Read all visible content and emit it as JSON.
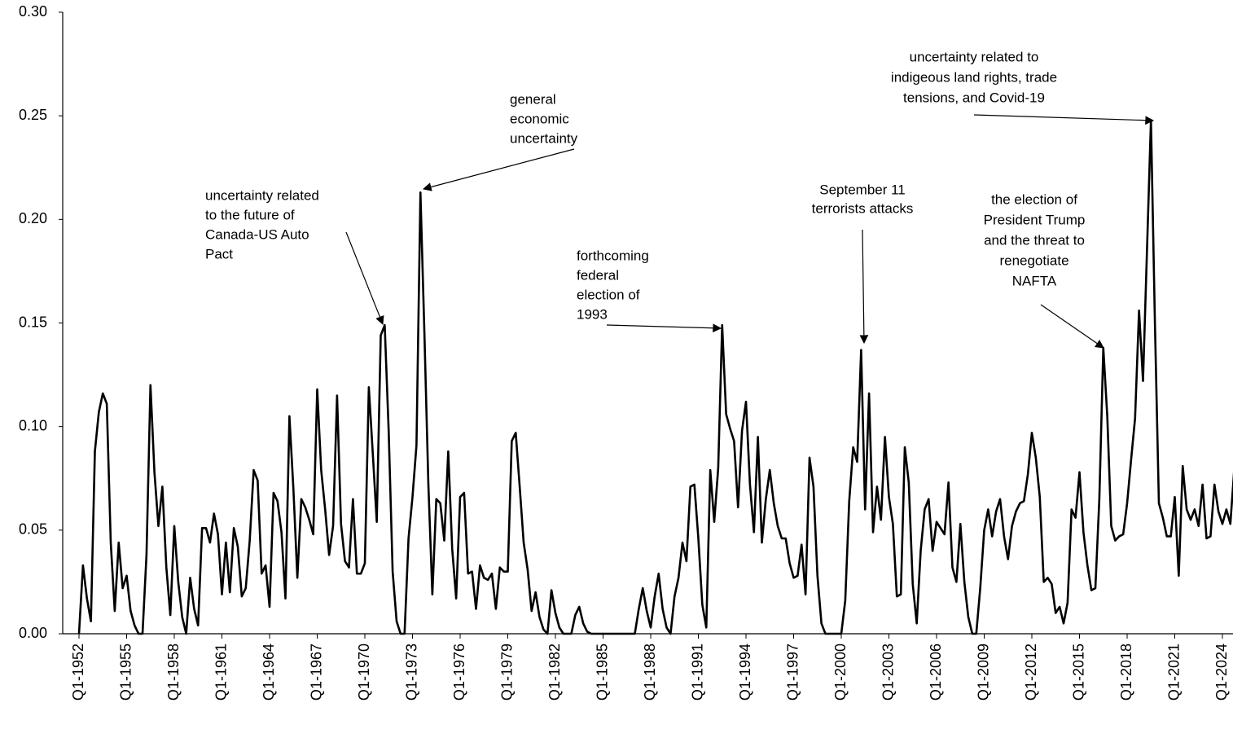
{
  "chart_data": {
    "type": "line",
    "categories": [
      "Q1-1952",
      null,
      null,
      null,
      null,
      null,
      null,
      null,
      null,
      null,
      null,
      null,
      "Q1-1955",
      null,
      null,
      null,
      null,
      null,
      null,
      null,
      null,
      null,
      null,
      null,
      "Q1-1958",
      null,
      null,
      null,
      null,
      null,
      null,
      null,
      null,
      null,
      null,
      null,
      "Q1-1961",
      null,
      null,
      null,
      null,
      null,
      null,
      null,
      null,
      null,
      null,
      null,
      "Q1-1964",
      null,
      null,
      null,
      null,
      null,
      null,
      null,
      null,
      null,
      null,
      null,
      "Q1-1967",
      null,
      null,
      null,
      null,
      null,
      null,
      null,
      null,
      null,
      null,
      null,
      "Q1-1970",
      null,
      null,
      null,
      null,
      null,
      null,
      null,
      null,
      null,
      null,
      null,
      "Q1-1973",
      null,
      null,
      null,
      null,
      null,
      null,
      null,
      null,
      null,
      null,
      null,
      "Q1-1976",
      null,
      null,
      null,
      null,
      null,
      null,
      null,
      null,
      null,
      null,
      null,
      "Q1-1979",
      null,
      null,
      null,
      null,
      null,
      null,
      null,
      null,
      null,
      null,
      null,
      "Q1-1982",
      null,
      null,
      null,
      null,
      null,
      null,
      null,
      null,
      null,
      null,
      null,
      "Q1-1985",
      null,
      null,
      null,
      null,
      null,
      null,
      null,
      null,
      null,
      null,
      null,
      "Q1-1988",
      null,
      null,
      null,
      null,
      null,
      null,
      null,
      null,
      null,
      null,
      null,
      "Q1-1991",
      null,
      null,
      null,
      null,
      null,
      null,
      null,
      null,
      null,
      null,
      null,
      "Q1-1994",
      null,
      null,
      null,
      null,
      null,
      null,
      null,
      null,
      null,
      null,
      null,
      "Q1-1997",
      null,
      null,
      null,
      null,
      null,
      null,
      null,
      null,
      null,
      null,
      null,
      "Q1-2000",
      null,
      null,
      null,
      null,
      null,
      null,
      null,
      null,
      null,
      null,
      null,
      "Q1-2003",
      null,
      null,
      null,
      null,
      null,
      null,
      null,
      null,
      null,
      null,
      null,
      "Q1-2006",
      null,
      null,
      null,
      null,
      null,
      null,
      null,
      null,
      null,
      null,
      null,
      "Q1-2009",
      null,
      null,
      null,
      null,
      null,
      null,
      null,
      null,
      null,
      null,
      null,
      "Q1-2012",
      null,
      null,
      null,
      null,
      null,
      null,
      null,
      null,
      null,
      null,
      null,
      "Q1-2015",
      null,
      null,
      null,
      null,
      null,
      null,
      null,
      null,
      null,
      null,
      null,
      "Q1-2018",
      null,
      null,
      null,
      null,
      null,
      null,
      null,
      null,
      null,
      null,
      null,
      "Q1-2021",
      null,
      null,
      null,
      null,
      null,
      null,
      null,
      null,
      null,
      null,
      null,
      "Q1-2024",
      null,
      null,
      null
    ],
    "values": [
      0,
      0.033,
      0.017,
      0.006,
      0.088,
      0.107,
      0.116,
      0.111,
      0.044,
      0.011,
      0.044,
      0.022,
      0.028,
      0.011,
      0.004,
      0,
      0,
      0.038,
      0.12,
      0.078,
      0.052,
      0.071,
      0.032,
      0.009,
      0.052,
      0.025,
      0.008,
      0,
      0.027,
      0.012,
      0.004,
      0.051,
      0.051,
      0.044,
      0.058,
      0.048,
      0.019,
      0.044,
      0.02,
      0.051,
      0.042,
      0.018,
      0.022,
      0.045,
      0.079,
      0.074,
      0.029,
      0.033,
      0.013,
      0.068,
      0.064,
      0.049,
      0.017,
      0.105,
      0.07,
      0.027,
      0.065,
      0.061,
      0.055,
      0.048,
      0.118,
      0.079,
      0.06,
      0.038,
      0.052,
      0.115,
      0.053,
      0.035,
      0.032,
      0.065,
      0.029,
      0.029,
      0.034,
      0.119,
      0.087,
      0.054,
      0.144,
      0.149,
      0.098,
      0.03,
      0.006,
      0,
      0,
      0.046,
      0.066,
      0.091,
      0.213,
      0.145,
      0.072,
      0.019,
      0.065,
      0.063,
      0.045,
      0.088,
      0.041,
      0.017,
      0.066,
      0.068,
      0.029,
      0.03,
      0.012,
      0.033,
      0.027,
      0.026,
      0.029,
      0.012,
      0.032,
      0.03,
      0.03,
      0.093,
      0.097,
      0.071,
      0.044,
      0.031,
      0.011,
      0.02,
      0.008,
      0.002,
      0,
      0.021,
      0.01,
      0.003,
      0,
      0,
      0,
      0.009,
      0.013,
      0.005,
      0.001,
      0,
      0,
      0,
      0,
      0,
      0,
      0,
      0,
      0,
      0,
      0,
      0,
      0.012,
      0.022,
      0.011,
      0.003,
      0.018,
      0.029,
      0.012,
      0.003,
      0,
      0.018,
      0.027,
      0.044,
      0.035,
      0.071,
      0.072,
      0.046,
      0.014,
      0.003,
      0.079,
      0.054,
      0.08,
      0.149,
      0.106,
      0.099,
      0.093,
      0.061,
      0.098,
      0.112,
      0.072,
      0.049,
      0.095,
      0.044,
      0.065,
      0.079,
      0.063,
      0.052,
      0.046,
      0.046,
      0.034,
      0.027,
      0.028,
      0.043,
      0.019,
      0.085,
      0.071,
      0.028,
      0.005,
      0,
      0,
      0,
      0,
      0,
      0.016,
      0.064,
      0.09,
      0.083,
      0.137,
      0.06,
      0.116,
      0.049,
      0.071,
      0.055,
      0.095,
      0.066,
      0.053,
      0.018,
      0.019,
      0.09,
      0.073,
      0.024,
      0.005,
      0.04,
      0.06,
      0.065,
      0.04,
      0.054,
      0.051,
      0.048,
      0.073,
      0.032,
      0.025,
      0.053,
      0.025,
      0.008,
      0,
      0,
      0.022,
      0.05,
      0.06,
      0.047,
      0.059,
      0.065,
      0.047,
      0.036,
      0.052,
      0.059,
      0.063,
      0.064,
      0.077,
      0.097,
      0.085,
      0.066,
      0.025,
      0.027,
      0.024,
      0.01,
      0.013,
      0.005,
      0.015,
      0.06,
      0.056,
      0.078,
      0.049,
      0.033,
      0.021,
      0.022,
      0.065,
      0.138,
      0.105,
      0.052,
      0.045,
      0.047,
      0.048,
      0.063,
      0.084,
      0.104,
      0.156,
      0.122,
      0.185,
      0.248,
      0.15,
      0.063,
      0.056,
      0.047,
      0.047,
      0.066,
      0.028,
      0.081,
      0.06,
      0.055,
      0.06,
      0.052,
      0.072,
      0.046,
      0.047,
      0.072,
      0.059,
      0.053,
      0.06,
      0.053,
      0.08
    ],
    "color": "#000000",
    "ylim": [
      0,
      0.3
    ],
    "yticks": [
      {
        "value": 0,
        "label": "0.00"
      },
      {
        "value": 0.05,
        "label": "0.05"
      },
      {
        "value": 0.1,
        "label": "0.10"
      },
      {
        "value": 0.15,
        "label": "0.15"
      },
      {
        "value": 0.2,
        "label": "0.20"
      },
      {
        "value": 0.25,
        "label": "0.25"
      },
      {
        "value": 0.3,
        "label": "0.30"
      }
    ],
    "grid": false,
    "annotations": [
      [
        "uncertainty related",
        "to the future of",
        "Canada-US Auto",
        "Pact"
      ],
      [
        "general",
        "economic",
        "uncertainty"
      ],
      [
        "forthcoming",
        "federal",
        "election of",
        "1993"
      ],
      [
        "September 11",
        "terrorists attacks"
      ],
      [
        "the election of",
        "President Trump",
        "and the threat to",
        "renegotiate",
        "NAFTA"
      ],
      [
        "uncertainty related to",
        "indigeous land rights, trade",
        "tensions, and Covid-19"
      ]
    ]
  }
}
